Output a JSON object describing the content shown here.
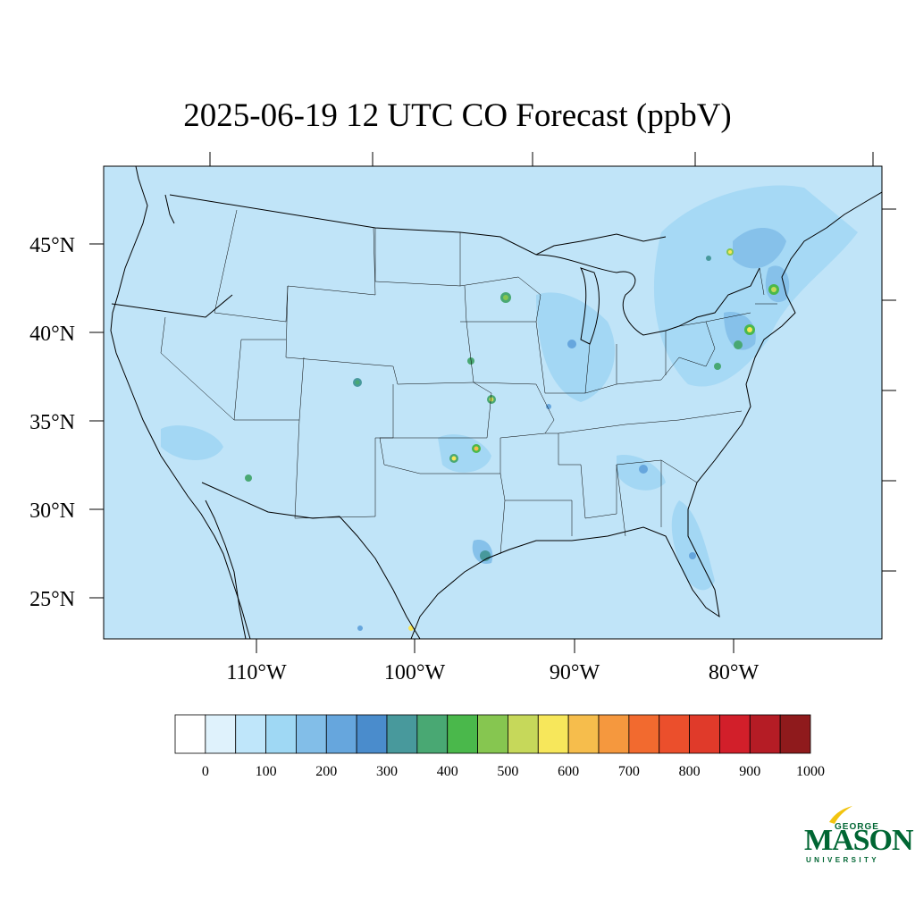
{
  "title": "2025-06-19 12 UTC CO Forecast (ppbV)",
  "map": {
    "lat_ticks": [
      "45°N",
      "40°N",
      "35°N",
      "30°N",
      "25°N"
    ],
    "lon_ticks": [
      "110°W",
      "100°W",
      "90°W",
      "80°W"
    ],
    "background_color": "#c0e4f8"
  },
  "colorbar": {
    "levels": [
      0,
      50,
      100,
      150,
      200,
      250,
      300,
      350,
      400,
      450,
      500,
      550,
      600,
      650,
      700,
      750,
      800,
      850,
      900,
      950,
      1000
    ],
    "labels": [
      "0",
      "100",
      "200",
      "300",
      "400",
      "500",
      "600",
      "700",
      "800",
      "900",
      "1000"
    ],
    "colors": [
      "#ffffff",
      "#dff2fc",
      "#bfe6fa",
      "#9fd8f4",
      "#82bee8",
      "#66a6dd",
      "#4a8ccc",
      "#48999c",
      "#49a873",
      "#4ab84b",
      "#86c650",
      "#c6d85a",
      "#f7e75b",
      "#f6bd4c",
      "#f5983e",
      "#f26a2f",
      "#eb4f2c",
      "#e03a2a",
      "#d21f2a",
      "#b51c25",
      "#8f1a1c"
    ]
  },
  "logo": {
    "line1": "GEORGE",
    "line2": "MASON",
    "line3": "UNIVERSITY",
    "color": "#006633",
    "accent": "#f2c40f"
  }
}
